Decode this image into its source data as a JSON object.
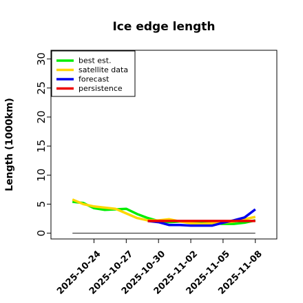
{
  "chart_data": {
    "type": "line",
    "title": "Ice edge length",
    "xlabel": "",
    "ylabel": "Length (1000km)",
    "ylim": [
      -1,
      31.5
    ],
    "yticks": [
      0,
      5,
      10,
      15,
      20,
      25,
      30
    ],
    "xticks": [
      "2025-10-24",
      "2025-10-27",
      "2025-10-30",
      "2025-11-02",
      "2025-11-05",
      "2025-11-08"
    ],
    "xtick_colors": [
      "#000000",
      "#000000",
      "#228b22",
      "#000000",
      "#000000",
      "#000000"
    ],
    "xlim": [
      "2025-10-20",
      "2025-11-10"
    ],
    "legend_position": "top-left",
    "grid": false,
    "baseline": {
      "y": 0,
      "x_start": "2025-10-22",
      "x_end": "2025-11-08",
      "color": "#333333"
    },
    "series": [
      {
        "name": "best est.",
        "color": "#00ee00",
        "x": [
          "2025-10-22",
          "2025-10-23",
          "2025-10-24",
          "2025-10-25",
          "2025-10-26",
          "2025-10-27",
          "2025-10-28",
          "2025-10-29",
          "2025-10-30",
          "2025-10-31",
          "2025-11-01",
          "2025-11-02",
          "2025-11-03",
          "2025-11-04",
          "2025-11-05",
          "2025-11-06",
          "2025-11-07",
          "2025-11-08"
        ],
        "y": [
          5.4,
          5.2,
          4.3,
          4.0,
          4.1,
          4.2,
          3.3,
          2.6,
          2.1,
          1.9,
          2.0,
          1.9,
          1.8,
          1.7,
          1.6,
          1.6,
          1.8,
          2.2
        ]
      },
      {
        "name": "satellite data",
        "color": "#ffd700",
        "x": [
          "2025-10-22",
          "2025-10-23",
          "2025-10-24",
          "2025-10-25",
          "2025-10-26",
          "2025-10-27",
          "2025-10-28",
          "2025-10-29",
          "2025-10-30",
          "2025-10-31",
          "2025-11-01",
          "2025-11-02",
          "2025-11-03",
          "2025-11-04",
          "2025-11-05",
          "2025-11-06",
          "2025-11-07",
          "2025-11-08"
        ],
        "y": [
          5.8,
          5.0,
          4.6,
          4.4,
          4.2,
          3.4,
          2.6,
          2.2,
          2.2,
          2.4,
          2.0,
          1.7,
          1.6,
          1.7,
          1.8,
          2.0,
          2.4,
          2.8
        ]
      },
      {
        "name": "forecast",
        "color": "#0000ee",
        "x": [
          "2025-10-29",
          "2025-10-30",
          "2025-10-31",
          "2025-11-01",
          "2025-11-02",
          "2025-11-03",
          "2025-11-04",
          "2025-11-05",
          "2025-11-06",
          "2025-11-07",
          "2025-11-08"
        ],
        "y": [
          2.1,
          1.9,
          1.4,
          1.4,
          1.3,
          1.3,
          1.3,
          1.8,
          2.2,
          2.7,
          4.1
        ]
      },
      {
        "name": "persistence",
        "color": "#ee0000",
        "x": [
          "2025-10-29",
          "2025-10-30",
          "2025-10-31",
          "2025-11-01",
          "2025-11-02",
          "2025-11-03",
          "2025-11-04",
          "2025-11-05",
          "2025-11-06",
          "2025-11-07",
          "2025-11-08"
        ],
        "y": [
          2.1,
          2.1,
          2.1,
          2.1,
          2.1,
          2.1,
          2.1,
          2.1,
          2.1,
          2.1,
          2.1
        ]
      }
    ]
  }
}
